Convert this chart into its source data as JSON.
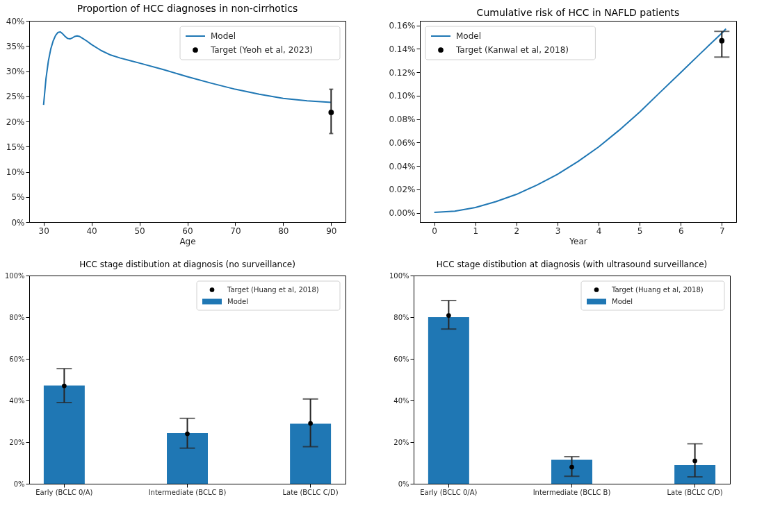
{
  "chart_data": [
    {
      "type": "line",
      "title": "Proportion of HCC diagnoses in non-cirrhotics",
      "xlabel": "Age",
      "xlim": [
        27,
        93
      ],
      "xticks": [
        30,
        40,
        50,
        60,
        70,
        80,
        90
      ],
      "ylim": [
        0,
        40
      ],
      "yticks": [
        {
          "value": 0,
          "label": "0%"
        },
        {
          "value": 5,
          "label": "5%"
        },
        {
          "value": 10,
          "label": "10%"
        },
        {
          "value": 15,
          "label": "15%"
        },
        {
          "value": 20,
          "label": "20%"
        },
        {
          "value": 25,
          "label": "25%"
        },
        {
          "value": 30,
          "label": "30%"
        },
        {
          "value": 35,
          "label": "35%"
        },
        {
          "value": 40,
          "label": "40%"
        }
      ],
      "legend": "top right",
      "series": [
        {
          "name": "Model",
          "type": "line",
          "color": "#1f77b4",
          "x": [
            30,
            30.5,
            31,
            31.5,
            32,
            32.5,
            33,
            33.5,
            34,
            34.5,
            35,
            35.5,
            36,
            36.5,
            37,
            37.5,
            38,
            39,
            40,
            42,
            44,
            46,
            48,
            50,
            55,
            60,
            65,
            70,
            75,
            80,
            85,
            90
          ],
          "values": [
            23.3,
            28.5,
            32.0,
            34.4,
            36.0,
            37.1,
            37.7,
            37.8,
            37.4,
            36.9,
            36.5,
            36.4,
            36.6,
            36.9,
            37.0,
            36.9,
            36.6,
            36.0,
            35.3,
            34.1,
            33.2,
            32.6,
            32.1,
            31.6,
            30.3,
            28.9,
            27.6,
            26.4,
            25.4,
            24.6,
            24.1,
            23.8
          ]
        },
        {
          "name": "Target (Yeoh et al, 2023)",
          "type": "scatter",
          "color": "#000000",
          "x": [
            90
          ],
          "values": [
            21.8
          ],
          "errors": [
            [
              17.6,
              26.4
            ]
          ]
        }
      ]
    },
    {
      "type": "line",
      "title": "Cumulative risk of HCC in NAFLD patients",
      "xlabel": "Year",
      "xlim": [
        -0.35,
        7.35
      ],
      "xticks": [
        0,
        1,
        2,
        3,
        4,
        5,
        6,
        7
      ],
      "ylim": [
        -0.008,
        0.164
      ],
      "yticks": [
        {
          "value": 0,
          "label": "0.00%"
        },
        {
          "value": 0.02,
          "label": "0.02%"
        },
        {
          "value": 0.04,
          "label": "0.04%"
        },
        {
          "value": 0.06,
          "label": "0.06%"
        },
        {
          "value": 0.08,
          "label": "0.08%"
        },
        {
          "value": 0.1,
          "label": "0.10%"
        },
        {
          "value": 0.12,
          "label": "0.12%"
        },
        {
          "value": 0.14,
          "label": "0.14%"
        },
        {
          "value": 0.16,
          "label": "0.16%"
        }
      ],
      "legend": "top left",
      "series": [
        {
          "name": "Model",
          "type": "line",
          "color": "#1f77b4",
          "x": [
            0,
            0.5,
            1,
            1.5,
            2,
            2.5,
            3,
            3.5,
            4,
            4.5,
            5,
            5.5,
            6,
            6.5,
            7,
            7.1
          ],
          "values": [
            0.0003,
            0.0013,
            0.0045,
            0.0095,
            0.0157,
            0.0237,
            0.0328,
            0.0438,
            0.0562,
            0.0705,
            0.086,
            0.103,
            0.1198,
            0.1368,
            0.1535,
            0.1572
          ]
        },
        {
          "name": "Target (Kanwal et al, 2018)",
          "type": "scatter",
          "color": "#000000",
          "x": [
            7
          ],
          "values": [
            0.147
          ],
          "errors": [
            [
              0.133,
              0.155
            ]
          ]
        }
      ]
    },
    {
      "type": "bar",
      "title": "HCC stage distibution at diagnosis (no surveillance)",
      "categories": [
        "Early (BCLC 0/A)",
        "Intermediate (BCLC B)",
        "Late (BCLC C/D)"
      ],
      "ylim": [
        0,
        100
      ],
      "yticks": [
        {
          "value": 0,
          "label": "0%"
        },
        {
          "value": 20,
          "label": "20%"
        },
        {
          "value": 40,
          "label": "40%"
        },
        {
          "value": 60,
          "label": "60%"
        },
        {
          "value": 80,
          "label": "80%"
        },
        {
          "value": 100,
          "label": "100%"
        }
      ],
      "legend": "top right",
      "series": [
        {
          "name": "Target (Huang et al, 2018)",
          "type": "scatter",
          "color": "#000000",
          "x": [
            "Early (BCLC 0/A)",
            "Intermediate (BCLC B)",
            "Late (BCLC C/D)"
          ],
          "values": [
            47.0,
            24.0,
            29.0
          ],
          "errors": [
            [
              39.0,
              55.3
            ],
            [
              17.1,
              31.4
            ],
            [
              17.8,
              40.7
            ]
          ]
        },
        {
          "name": "Model",
          "type": "bar",
          "color": "#1f77b4",
          "values": [
            47.2,
            24.3,
            28.8
          ]
        }
      ]
    },
    {
      "type": "bar",
      "title": "HCC stage distibution at diagnosis (with ultrasound surveillance)",
      "categories": [
        "Early (BCLC 0/A)",
        "Intermediate (BCLC B)",
        "Late (BCLC C/D)"
      ],
      "ylim": [
        0,
        100
      ],
      "yticks": [
        {
          "value": 0,
          "label": "0%"
        },
        {
          "value": 20,
          "label": "20%"
        },
        {
          "value": 40,
          "label": "40%"
        },
        {
          "value": 60,
          "label": "60%"
        },
        {
          "value": 80,
          "label": "80%"
        },
        {
          "value": 100,
          "label": "100%"
        }
      ],
      "legend": "top right",
      "series": [
        {
          "name": "Target (Huang et al, 2018)",
          "type": "scatter",
          "color": "#000000",
          "x": [
            "Early (BCLC 0/A)",
            "Intermediate (BCLC B)",
            "Late (BCLC C/D)"
          ],
          "values": [
            80.8,
            8.0,
            11.0
          ],
          "errors": [
            [
              74.3,
              88.0
            ],
            [
              3.6,
              13.0
            ],
            [
              3.3,
              19.2
            ]
          ]
        },
        {
          "name": "Model",
          "type": "bar",
          "color": "#1f77b4",
          "values": [
            80.0,
            11.5,
            9.0
          ]
        }
      ]
    }
  ]
}
